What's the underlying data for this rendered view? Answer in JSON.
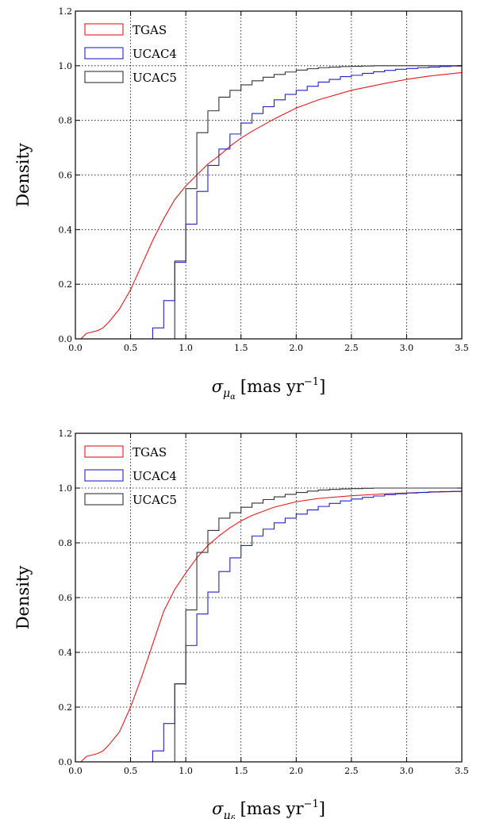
{
  "figure": {
    "panels": [
      {
        "xlabel_symbol": "σ",
        "xlabel_sub1": "μ",
        "xlabel_sub2": "α",
        "xlabel_unit": "[mas yr",
        "xlabel_exp": "−1",
        "xlabel_close": "]"
      },
      {
        "xlabel_symbol": "σ",
        "xlabel_sub1": "μ",
        "xlabel_sub2": "δ",
        "xlabel_unit": "[mas yr",
        "xlabel_exp": "−1",
        "xlabel_close": "]"
      }
    ]
  },
  "chart_data": [
    {
      "type": "line",
      "xlabel": "σ_μα [mas yr^-1]",
      "ylabel": "Density",
      "xlim": [
        0.0,
        3.5
      ],
      "ylim": [
        0.0,
        1.2
      ],
      "xticks": [
        "0.0",
        "0.5",
        "1.0",
        "1.5",
        "2.0",
        "2.5",
        "3.0",
        "3.5"
      ],
      "yticks": [
        "0.0",
        "0.2",
        "0.4",
        "0.6",
        "0.8",
        "1.0",
        "1.2"
      ],
      "grid": true,
      "legend": "top-left",
      "series": [
        {
          "name": "TGAS",
          "style": "line",
          "color": "#e41a1c",
          "x": [
            0.05,
            0.1,
            0.15,
            0.2,
            0.25,
            0.3,
            0.4,
            0.5,
            0.6,
            0.7,
            0.8,
            0.9,
            1.0,
            1.1,
            1.2,
            1.3,
            1.4,
            1.5,
            1.6,
            1.8,
            2.0,
            2.2,
            2.5,
            2.8,
            3.0,
            3.2,
            3.5
          ],
          "y": [
            0.0,
            0.02,
            0.025,
            0.03,
            0.04,
            0.06,
            0.11,
            0.18,
            0.27,
            0.36,
            0.44,
            0.51,
            0.56,
            0.6,
            0.64,
            0.67,
            0.705,
            0.735,
            0.76,
            0.805,
            0.845,
            0.875,
            0.91,
            0.935,
            0.95,
            0.962,
            0.975
          ]
        },
        {
          "name": "UCAC4",
          "style": "step",
          "color": "#2222cc",
          "x": [
            0.6,
            0.7,
            0.8,
            0.9,
            1.0,
            1.1,
            1.2,
            1.3,
            1.4,
            1.5,
            1.6,
            1.7,
            1.8,
            1.9,
            2.0,
            2.1,
            2.2,
            2.3,
            2.4,
            2.5,
            2.6,
            2.7,
            2.8,
            2.9,
            3.0,
            3.1,
            3.2,
            3.3,
            3.4,
            3.5
          ],
          "y": [
            0.0,
            0.04,
            0.14,
            0.28,
            0.42,
            0.54,
            0.635,
            0.695,
            0.75,
            0.79,
            0.825,
            0.85,
            0.875,
            0.895,
            0.91,
            0.925,
            0.94,
            0.95,
            0.96,
            0.965,
            0.972,
            0.978,
            0.983,
            0.987,
            0.99,
            0.993,
            0.995,
            0.997,
            0.999,
            1.0
          ]
        },
        {
          "name": "UCAC5",
          "style": "step",
          "color": "#333333",
          "x": [
            0.6,
            0.7,
            0.8,
            0.9,
            1.0,
            1.1,
            1.2,
            1.3,
            1.4,
            1.5,
            1.6,
            1.7,
            1.8,
            1.9,
            2.0,
            2.1,
            2.2,
            2.3,
            2.4,
            2.5,
            2.6,
            2.7,
            2.8,
            2.9,
            3.0,
            3.1,
            3.2,
            3.3,
            3.4,
            3.5
          ],
          "y": [
            0.0,
            0.0,
            0.0,
            0.285,
            0.55,
            0.755,
            0.835,
            0.885,
            0.91,
            0.93,
            0.945,
            0.958,
            0.968,
            0.977,
            0.984,
            0.989,
            0.993,
            0.995,
            0.997,
            0.998,
            0.999,
            1.0,
            1.0,
            1.0,
            1.0,
            1.0,
            1.0,
            1.0,
            1.0,
            1.0
          ]
        }
      ]
    },
    {
      "type": "line",
      "xlabel": "σ_μδ [mas yr^-1]",
      "ylabel": "Density",
      "xlim": [
        0.0,
        3.5
      ],
      "ylim": [
        0.0,
        1.2
      ],
      "xticks": [
        "0.0",
        "0.5",
        "1.0",
        "1.5",
        "2.0",
        "2.5",
        "3.0",
        "3.5"
      ],
      "yticks": [
        "0.0",
        "0.2",
        "0.4",
        "0.6",
        "0.8",
        "1.0",
        "1.2"
      ],
      "grid": true,
      "legend": "top-left",
      "series": [
        {
          "name": "TGAS",
          "style": "line",
          "color": "#e41a1c",
          "x": [
            0.05,
            0.1,
            0.15,
            0.2,
            0.25,
            0.3,
            0.4,
            0.5,
            0.6,
            0.7,
            0.8,
            0.9,
            1.0,
            1.1,
            1.2,
            1.3,
            1.4,
            1.5,
            1.6,
            1.8,
            2.0,
            2.2,
            2.5,
            2.8,
            3.0,
            3.2,
            3.5
          ],
          "y": [
            0.0,
            0.02,
            0.025,
            0.03,
            0.04,
            0.06,
            0.11,
            0.2,
            0.31,
            0.43,
            0.55,
            0.63,
            0.69,
            0.745,
            0.79,
            0.825,
            0.855,
            0.88,
            0.9,
            0.93,
            0.95,
            0.962,
            0.972,
            0.979,
            0.982,
            0.985,
            0.988
          ]
        },
        {
          "name": "UCAC4",
          "style": "step",
          "color": "#2222cc",
          "x": [
            0.6,
            0.7,
            0.8,
            0.9,
            1.0,
            1.1,
            1.2,
            1.3,
            1.4,
            1.5,
            1.6,
            1.7,
            1.8,
            1.9,
            2.0,
            2.1,
            2.2,
            2.3,
            2.4,
            2.5,
            2.6,
            2.7,
            2.8,
            2.9,
            3.0,
            3.1,
            3.2,
            3.3,
            3.4,
            3.5
          ],
          "y": [
            0.0,
            0.04,
            0.14,
            0.285,
            0.425,
            0.54,
            0.62,
            0.695,
            0.745,
            0.79,
            0.825,
            0.85,
            0.873,
            0.89,
            0.905,
            0.92,
            0.933,
            0.944,
            0.953,
            0.96,
            0.966,
            0.971,
            0.976,
            0.979,
            0.982,
            0.984,
            0.986,
            0.987,
            0.988,
            0.99
          ]
        },
        {
          "name": "UCAC5",
          "style": "step",
          "color": "#333333",
          "x": [
            0.6,
            0.7,
            0.8,
            0.9,
            1.0,
            1.1,
            1.2,
            1.3,
            1.4,
            1.5,
            1.6,
            1.7,
            1.8,
            1.9,
            2.0,
            2.1,
            2.2,
            2.3,
            2.4,
            2.5,
            2.6,
            2.7,
            2.8,
            2.9,
            3.0,
            3.1,
            3.2,
            3.3,
            3.4,
            3.5
          ],
          "y": [
            0.0,
            0.0,
            0.0,
            0.285,
            0.555,
            0.765,
            0.845,
            0.89,
            0.91,
            0.93,
            0.945,
            0.958,
            0.968,
            0.977,
            0.984,
            0.989,
            0.993,
            0.995,
            0.997,
            0.998,
            0.999,
            1.0,
            1.0,
            1.0,
            1.0,
            1.0,
            1.0,
            1.0,
            1.0,
            1.0
          ]
        }
      ]
    }
  ]
}
